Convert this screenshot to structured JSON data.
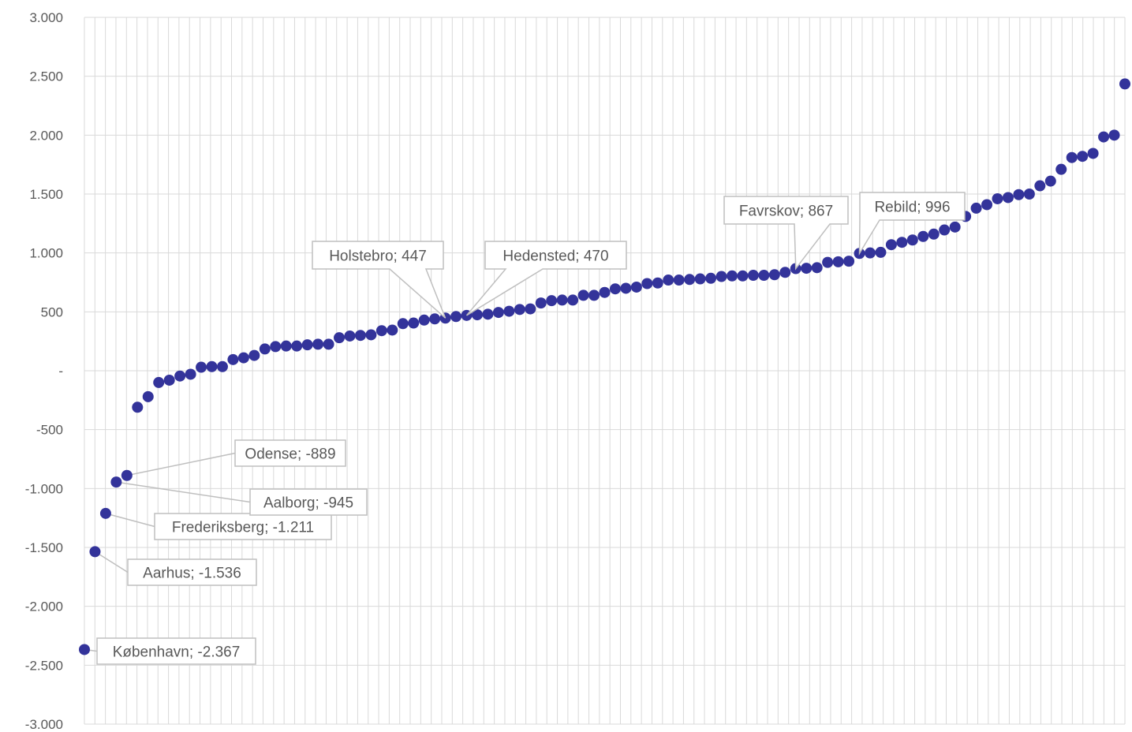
{
  "chart_data": {
    "type": "scatter",
    "title": "",
    "xlabel": "",
    "ylabel": "",
    "ylim": [
      -3000,
      3000
    ],
    "yticks": [
      3000,
      2500,
      2000,
      1500,
      1000,
      500,
      0,
      -500,
      -1000,
      -1500,
      -2000,
      -2500,
      -3000
    ],
    "ytick_labels": [
      "3.000",
      "2.500",
      "2.000",
      "1.500",
      "1.000",
      "500",
      "-",
      "-500",
      "-1.000",
      "-1.500",
      "-2.000",
      "-2.500",
      "-3.000"
    ],
    "grid": true,
    "marker_color": "#33339a",
    "points": [
      {
        "x": 1,
        "y": -2367,
        "label": "København; -2.367"
      },
      {
        "x": 2,
        "y": -1536,
        "label": "Aarhus; -1.536"
      },
      {
        "x": 3,
        "y": -1211,
        "label": "Frederiksberg; -1.211"
      },
      {
        "x": 4,
        "y": -945,
        "label": "Aalborg; -945"
      },
      {
        "x": 5,
        "y": -889,
        "label": "Odense; -889"
      },
      {
        "x": 6,
        "y": -310
      },
      {
        "x": 7,
        "y": -220
      },
      {
        "x": 8,
        "y": -100
      },
      {
        "x": 9,
        "y": -80
      },
      {
        "x": 10,
        "y": -45
      },
      {
        "x": 11,
        "y": -30
      },
      {
        "x": 12,
        "y": 30
      },
      {
        "x": 13,
        "y": 35
      },
      {
        "x": 14,
        "y": 35
      },
      {
        "x": 15,
        "y": 95
      },
      {
        "x": 16,
        "y": 110
      },
      {
        "x": 17,
        "y": 130
      },
      {
        "x": 18,
        "y": 185
      },
      {
        "x": 19,
        "y": 205
      },
      {
        "x": 20,
        "y": 210
      },
      {
        "x": 21,
        "y": 210
      },
      {
        "x": 22,
        "y": 220
      },
      {
        "x": 23,
        "y": 225
      },
      {
        "x": 24,
        "y": 225
      },
      {
        "x": 25,
        "y": 280
      },
      {
        "x": 26,
        "y": 295
      },
      {
        "x": 27,
        "y": 300
      },
      {
        "x": 28,
        "y": 305
      },
      {
        "x": 29,
        "y": 340
      },
      {
        "x": 30,
        "y": 345
      },
      {
        "x": 31,
        "y": 400
      },
      {
        "x": 32,
        "y": 405
      },
      {
        "x": 33,
        "y": 430
      },
      {
        "x": 34,
        "y": 440
      },
      {
        "x": 35,
        "y": 447,
        "label": "Holstebro; 447"
      },
      {
        "x": 36,
        "y": 460
      },
      {
        "x": 37,
        "y": 470,
        "label": "Hedensted; 470"
      },
      {
        "x": 38,
        "y": 475
      },
      {
        "x": 39,
        "y": 480
      },
      {
        "x": 40,
        "y": 495
      },
      {
        "x": 41,
        "y": 505
      },
      {
        "x": 42,
        "y": 520
      },
      {
        "x": 43,
        "y": 525
      },
      {
        "x": 44,
        "y": 575
      },
      {
        "x": 45,
        "y": 595
      },
      {
        "x": 46,
        "y": 600
      },
      {
        "x": 47,
        "y": 600
      },
      {
        "x": 48,
        "y": 640
      },
      {
        "x": 49,
        "y": 640
      },
      {
        "x": 50,
        "y": 665
      },
      {
        "x": 51,
        "y": 695
      },
      {
        "x": 52,
        "y": 700
      },
      {
        "x": 53,
        "y": 710
      },
      {
        "x": 54,
        "y": 740
      },
      {
        "x": 55,
        "y": 745
      },
      {
        "x": 56,
        "y": 770
      },
      {
        "x": 57,
        "y": 770
      },
      {
        "x": 58,
        "y": 775
      },
      {
        "x": 59,
        "y": 780
      },
      {
        "x": 60,
        "y": 785
      },
      {
        "x": 61,
        "y": 800
      },
      {
        "x": 62,
        "y": 805
      },
      {
        "x": 63,
        "y": 805
      },
      {
        "x": 64,
        "y": 810
      },
      {
        "x": 65,
        "y": 810
      },
      {
        "x": 66,
        "y": 815
      },
      {
        "x": 67,
        "y": 835
      },
      {
        "x": 68,
        "y": 867,
        "label": "Favrskov; 867"
      },
      {
        "x": 69,
        "y": 870
      },
      {
        "x": 70,
        "y": 875
      },
      {
        "x": 71,
        "y": 920
      },
      {
        "x": 72,
        "y": 925
      },
      {
        "x": 73,
        "y": 930
      },
      {
        "x": 74,
        "y": 996,
        "label": "Rebild; 996"
      },
      {
        "x": 75,
        "y": 1000
      },
      {
        "x": 76,
        "y": 1005
      },
      {
        "x": 77,
        "y": 1070
      },
      {
        "x": 78,
        "y": 1090
      },
      {
        "x": 79,
        "y": 1110
      },
      {
        "x": 80,
        "y": 1140
      },
      {
        "x": 81,
        "y": 1160
      },
      {
        "x": 82,
        "y": 1195
      },
      {
        "x": 83,
        "y": 1220
      },
      {
        "x": 84,
        "y": 1310
      },
      {
        "x": 85,
        "y": 1380
      },
      {
        "x": 86,
        "y": 1410
      },
      {
        "x": 87,
        "y": 1460
      },
      {
        "x": 88,
        "y": 1470
      },
      {
        "x": 89,
        "y": 1495
      },
      {
        "x": 90,
        "y": 1500
      },
      {
        "x": 91,
        "y": 1570
      },
      {
        "x": 92,
        "y": 1610
      },
      {
        "x": 93,
        "y": 1710
      },
      {
        "x": 94,
        "y": 1810
      },
      {
        "x": 95,
        "y": 1820
      },
      {
        "x": 96,
        "y": 1845
      },
      {
        "x": 97,
        "y": 1985
      },
      {
        "x": 98,
        "y": 2000
      },
      {
        "x": 99,
        "y": 2435
      }
    ]
  }
}
